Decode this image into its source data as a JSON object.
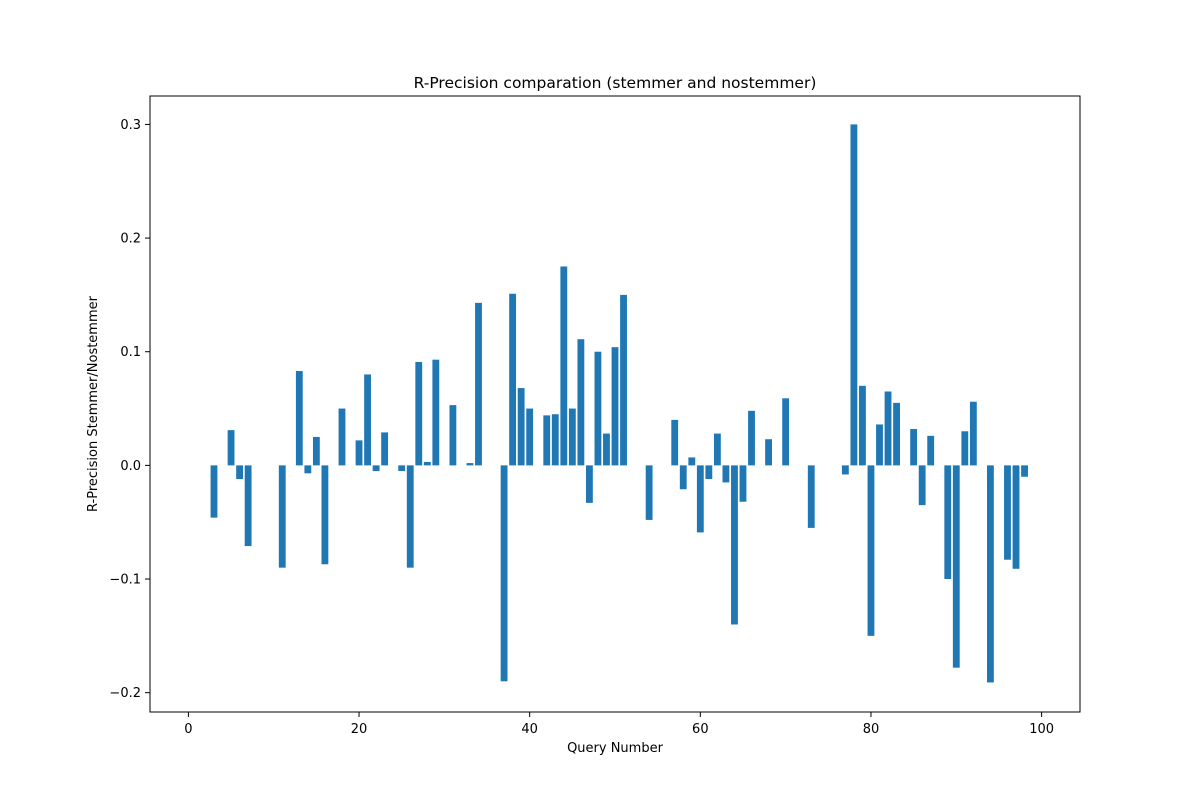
{
  "chart_data": {
    "type": "bar",
    "title": "R-Precision comparation (stemmer and nostemmer)",
    "xlabel": "Query Number",
    "ylabel": "R-Precision Stemmer/Nostemmer",
    "xlim": [
      -4.5,
      104.5
    ],
    "ylim": [
      -0.217,
      0.325
    ],
    "xticks": [
      0,
      20,
      40,
      60,
      80,
      100
    ],
    "xtick_labels": [
      "0",
      "20",
      "40",
      "60",
      "80",
      "100"
    ],
    "yticks": [
      -0.2,
      -0.1,
      0.0,
      0.1,
      0.2,
      0.3
    ],
    "ytick_labels": [
      "−0.2",
      "−0.1",
      "0.0",
      "0.1",
      "0.2",
      "0.3"
    ],
    "grid": false,
    "legend": "none",
    "bar_color": "#1f77b4",
    "bar_width": 0.8,
    "x": [
      3,
      5,
      6,
      7,
      11,
      13,
      14,
      15,
      16,
      18,
      20,
      21,
      22,
      23,
      25,
      26,
      27,
      28,
      29,
      31,
      33,
      34,
      37,
      38,
      39,
      40,
      42,
      43,
      44,
      45,
      46,
      47,
      48,
      49,
      50,
      51,
      54,
      57,
      58,
      59,
      60,
      61,
      62,
      63,
      64,
      65,
      66,
      68,
      70,
      73,
      77,
      78,
      79,
      80,
      81,
      82,
      83,
      85,
      86,
      87,
      89,
      90,
      91,
      92,
      94,
      96,
      97,
      98
    ],
    "values": [
      -0.046,
      0.031,
      -0.012,
      -0.071,
      -0.09,
      0.083,
      -0.007,
      0.025,
      -0.087,
      0.05,
      0.022,
      0.08,
      -0.005,
      0.029,
      -0.005,
      -0.09,
      0.091,
      0.003,
      0.093,
      0.053,
      0.002,
      0.143,
      -0.19,
      0.151,
      0.068,
      0.05,
      0.044,
      0.045,
      0.175,
      0.05,
      0.111,
      -0.033,
      0.1,
      0.028,
      0.104,
      0.15,
      -0.048,
      0.04,
      -0.021,
      0.007,
      -0.059,
      -0.012,
      0.028,
      -0.015,
      -0.14,
      -0.032,
      0.048,
      0.023,
      0.059,
      -0.055,
      -0.008,
      0.3,
      0.07,
      -0.15,
      0.036,
      0.065,
      0.055,
      0.032,
      -0.035,
      0.026,
      -0.1,
      -0.178,
      0.03,
      0.056,
      -0.191,
      -0.083,
      -0.091,
      -0.01
    ]
  }
}
